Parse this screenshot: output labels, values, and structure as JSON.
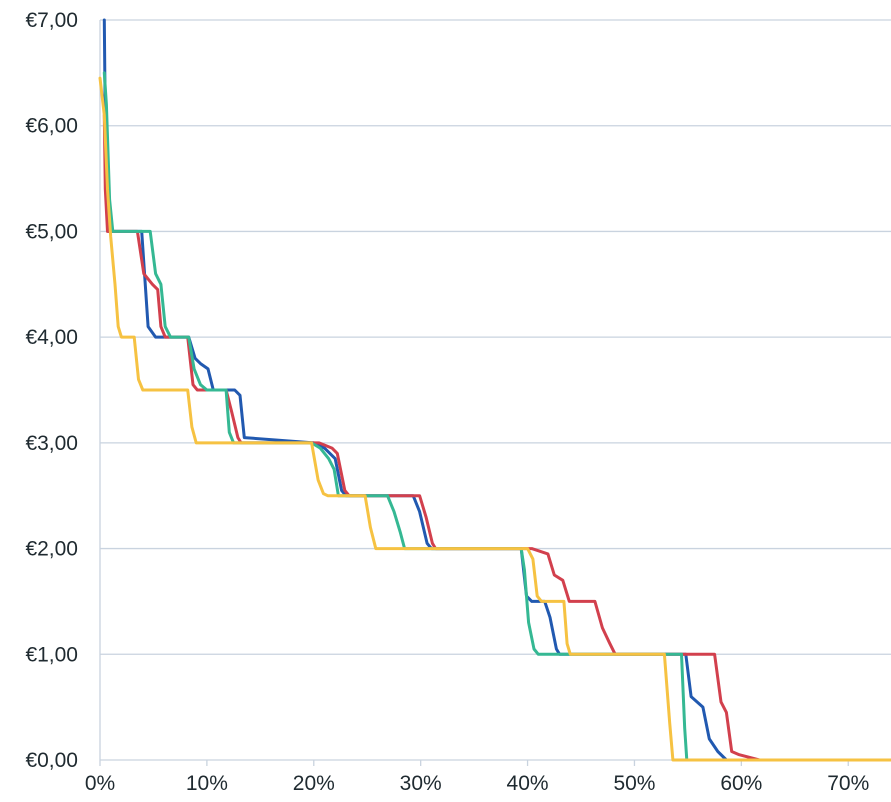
{
  "chart_data": {
    "type": "line",
    "title": "",
    "xlabel": "",
    "ylabel": "",
    "xlim": [
      0,
      74
    ],
    "ylim": [
      0,
      7
    ],
    "grid": true,
    "legend": "none",
    "x_ticks": [
      {
        "value": 0,
        "label": "0%"
      },
      {
        "value": 10,
        "label": "10%"
      },
      {
        "value": 20,
        "label": "20%"
      },
      {
        "value": 30,
        "label": "30%"
      },
      {
        "value": 40,
        "label": "40%"
      },
      {
        "value": 50,
        "label": "50%"
      },
      {
        "value": 60,
        "label": "60%"
      },
      {
        "value": 70,
        "label": "70%"
      }
    ],
    "y_ticks": [
      {
        "value": 0,
        "label": "€0,00"
      },
      {
        "value": 1,
        "label": "€1,00"
      },
      {
        "value": 2,
        "label": "€2,00"
      },
      {
        "value": 3,
        "label": "€3,00"
      },
      {
        "value": 4,
        "label": "€4,00"
      },
      {
        "value": 5,
        "label": "€5,00"
      },
      {
        "value": 6,
        "label": "€6,00"
      },
      {
        "value": 7,
        "label": "€7,00"
      }
    ],
    "series": [
      {
        "color": "#2159b0",
        "points": [
          [
            0.4,
            7.0
          ],
          [
            0.5,
            6.0
          ],
          [
            0.6,
            5.4
          ],
          [
            0.8,
            5.0
          ],
          [
            3.9,
            5.0
          ],
          [
            4.5,
            4.1
          ],
          [
            5.2,
            4.0
          ],
          [
            8.3,
            4.0
          ],
          [
            8.9,
            3.8
          ],
          [
            9.4,
            3.75
          ],
          [
            10.1,
            3.7
          ],
          [
            10.6,
            3.5
          ],
          [
            12.6,
            3.5
          ],
          [
            13.1,
            3.45
          ],
          [
            13.5,
            3.05
          ],
          [
            20.0,
            3.0
          ],
          [
            21.0,
            2.95
          ],
          [
            22.0,
            2.85
          ],
          [
            22.6,
            2.55
          ],
          [
            23.0,
            2.5
          ],
          [
            29.3,
            2.5
          ],
          [
            29.9,
            2.35
          ],
          [
            30.6,
            2.05
          ],
          [
            31.0,
            2.0
          ],
          [
            39.4,
            2.0
          ],
          [
            39.9,
            1.55
          ],
          [
            40.4,
            1.5
          ],
          [
            41.6,
            1.5
          ],
          [
            42.1,
            1.35
          ],
          [
            42.7,
            1.05
          ],
          [
            43.0,
            1.0
          ],
          [
            54.8,
            1.0
          ],
          [
            55.3,
            0.6
          ],
          [
            56.4,
            0.5
          ],
          [
            57.0,
            0.2
          ],
          [
            57.8,
            0.08
          ],
          [
            58.6,
            0.0
          ],
          [
            74,
            0.0
          ]
        ]
      },
      {
        "color": "#d2404d",
        "points": [
          [
            0.4,
            6.1
          ],
          [
            0.5,
            5.4
          ],
          [
            0.7,
            5.0
          ],
          [
            3.5,
            5.0
          ],
          [
            4.1,
            4.6
          ],
          [
            4.9,
            4.5
          ],
          [
            5.4,
            4.45
          ],
          [
            5.7,
            4.1
          ],
          [
            6.1,
            4.0
          ],
          [
            8.2,
            4.0
          ],
          [
            8.7,
            3.55
          ],
          [
            9.1,
            3.5
          ],
          [
            11.8,
            3.5
          ],
          [
            12.3,
            3.3
          ],
          [
            12.9,
            3.05
          ],
          [
            13.2,
            3.0
          ],
          [
            20.5,
            3.0
          ],
          [
            21.7,
            2.95
          ],
          [
            22.2,
            2.9
          ],
          [
            22.9,
            2.55
          ],
          [
            23.3,
            2.5
          ],
          [
            29.9,
            2.5
          ],
          [
            30.5,
            2.3
          ],
          [
            31.1,
            2.05
          ],
          [
            31.4,
            2.0
          ],
          [
            40.4,
            2.0
          ],
          [
            41.9,
            1.95
          ],
          [
            42.5,
            1.75
          ],
          [
            43.3,
            1.7
          ],
          [
            43.9,
            1.5
          ],
          [
            46.3,
            1.5
          ],
          [
            47.0,
            1.25
          ],
          [
            47.7,
            1.1
          ],
          [
            48.2,
            1.0
          ],
          [
            57.5,
            1.0
          ],
          [
            58.1,
            0.55
          ],
          [
            58.6,
            0.45
          ],
          [
            59.1,
            0.08
          ],
          [
            59.8,
            0.05
          ],
          [
            61.7,
            0.0
          ],
          [
            74,
            0.0
          ]
        ]
      },
      {
        "color": "#35b893",
        "points": [
          [
            0.4,
            6.5
          ],
          [
            0.6,
            6.2
          ],
          [
            0.9,
            5.3
          ],
          [
            1.2,
            5.0
          ],
          [
            4.7,
            5.0
          ],
          [
            5.2,
            4.6
          ],
          [
            5.7,
            4.5
          ],
          [
            6.1,
            4.1
          ],
          [
            6.6,
            4.0
          ],
          [
            8.3,
            4.0
          ],
          [
            8.8,
            3.7
          ],
          [
            9.4,
            3.55
          ],
          [
            10.0,
            3.5
          ],
          [
            11.8,
            3.5
          ],
          [
            12.1,
            3.1
          ],
          [
            12.5,
            3.0
          ],
          [
            19.8,
            3.0
          ],
          [
            20.6,
            2.95
          ],
          [
            21.4,
            2.85
          ],
          [
            21.9,
            2.75
          ],
          [
            22.3,
            2.5
          ],
          [
            26.9,
            2.5
          ],
          [
            27.5,
            2.35
          ],
          [
            28.1,
            2.15
          ],
          [
            28.5,
            2.0
          ],
          [
            39.4,
            2.0
          ],
          [
            39.7,
            1.8
          ],
          [
            40.1,
            1.3
          ],
          [
            40.6,
            1.05
          ],
          [
            41.0,
            1.0
          ],
          [
            54.4,
            1.0
          ],
          [
            54.7,
            0.3
          ],
          [
            54.9,
            0.0
          ],
          [
            74,
            0.0
          ]
        ]
      },
      {
        "color": "#f6c242",
        "points": [
          [
            0.0,
            6.45
          ],
          [
            0.4,
            6.1
          ],
          [
            0.7,
            5.4
          ],
          [
            1.0,
            4.95
          ],
          [
            1.4,
            4.5
          ],
          [
            1.7,
            4.1
          ],
          [
            2.0,
            4.0
          ],
          [
            3.2,
            4.0
          ],
          [
            3.6,
            3.6
          ],
          [
            4.0,
            3.5
          ],
          [
            8.2,
            3.5
          ],
          [
            8.6,
            3.15
          ],
          [
            9.0,
            3.0
          ],
          [
            19.8,
            3.0
          ],
          [
            20.4,
            2.65
          ],
          [
            20.9,
            2.52
          ],
          [
            21.3,
            2.5
          ],
          [
            24.8,
            2.5
          ],
          [
            25.3,
            2.2
          ],
          [
            25.8,
            2.0
          ],
          [
            40.0,
            2.0
          ],
          [
            40.5,
            1.9
          ],
          [
            40.9,
            1.55
          ],
          [
            41.3,
            1.5
          ],
          [
            43.4,
            1.5
          ],
          [
            43.7,
            1.1
          ],
          [
            44.0,
            1.0
          ],
          [
            52.8,
            1.0
          ],
          [
            53.3,
            0.35
          ],
          [
            53.6,
            0.0
          ],
          [
            74,
            0.0
          ]
        ]
      }
    ]
  }
}
